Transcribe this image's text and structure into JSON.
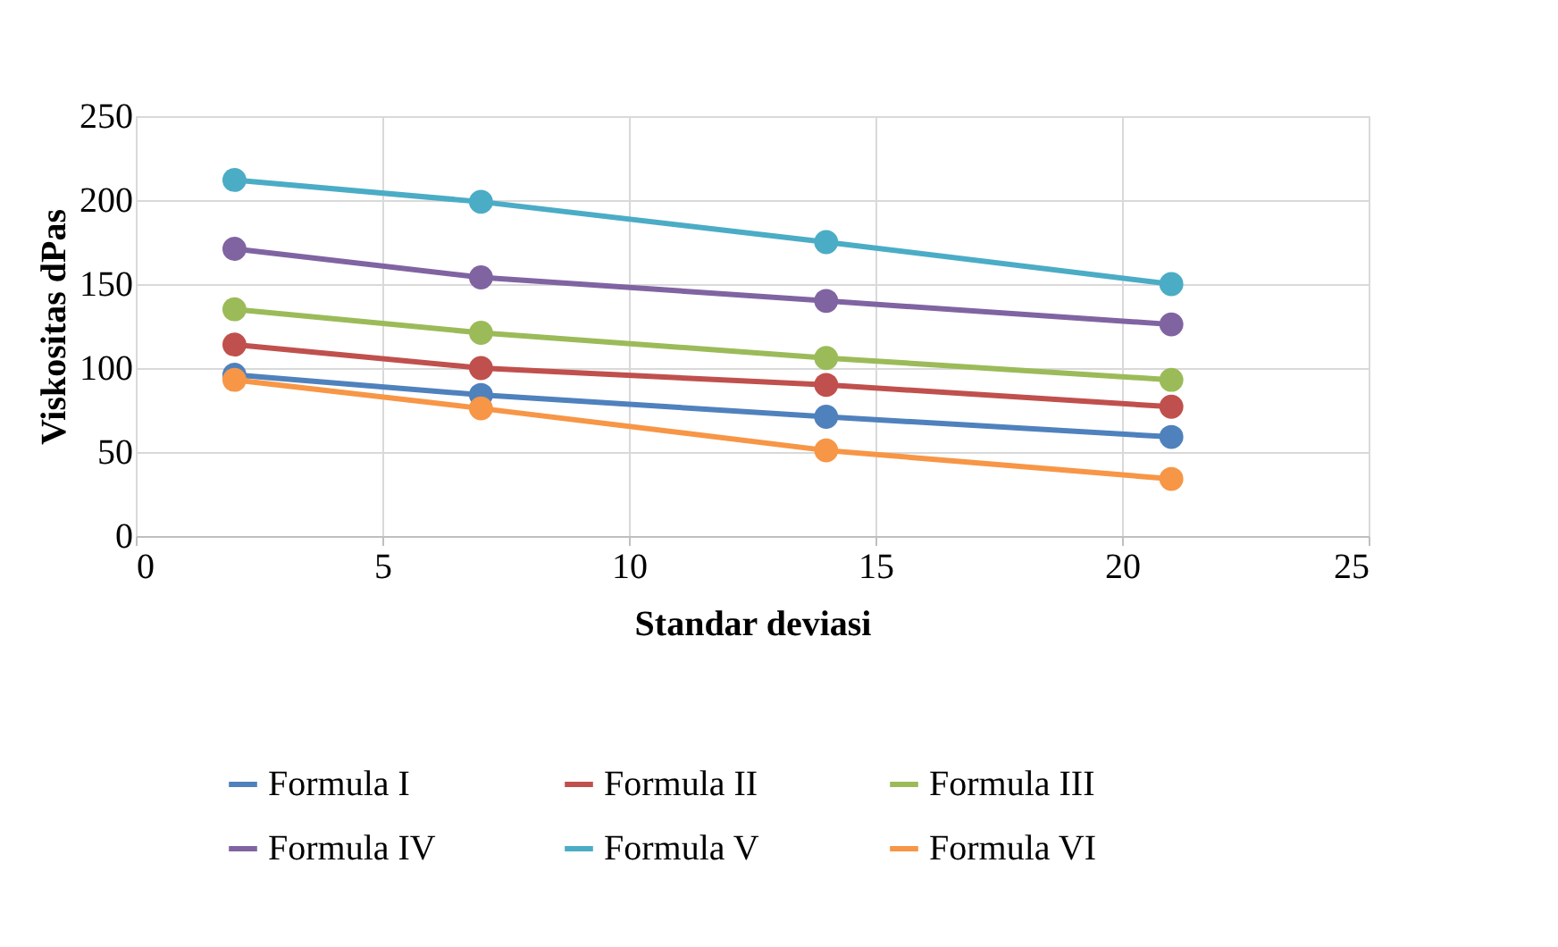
{
  "chart_data": {
    "type": "line",
    "xlabel": "Standar deviasi",
    "ylabel": "Viskositas dPas",
    "x": [
      2,
      7,
      14,
      21
    ],
    "series": [
      {
        "name": "Formula I",
        "color": "#4f81bd",
        "values": [
          96,
          84,
          71,
          59
        ]
      },
      {
        "name": "Formula II",
        "color": "#c0504d",
        "values": [
          114,
          100,
          90,
          77
        ]
      },
      {
        "name": "Formula III",
        "color": "#9bbb59",
        "values": [
          135,
          121,
          106,
          93
        ]
      },
      {
        "name": "Formula IV",
        "color": "#8064a2",
        "values": [
          171,
          154,
          140,
          126
        ]
      },
      {
        "name": "Formula V",
        "color": "#4bacc6",
        "values": [
          212,
          199,
          175,
          150
        ]
      },
      {
        "name": "Formula VI",
        "color": "#f79646",
        "values": [
          93,
          76,
          51,
          34
        ]
      }
    ],
    "xlim": [
      0,
      25
    ],
    "xticks": [
      0,
      5,
      10,
      15,
      20,
      25
    ],
    "ylim": [
      0,
      250
    ],
    "yticks": [
      0,
      50,
      100,
      150,
      200,
      250
    ],
    "grid": true,
    "legend": "bottom",
    "marker": "circle",
    "line_style": "solid"
  }
}
